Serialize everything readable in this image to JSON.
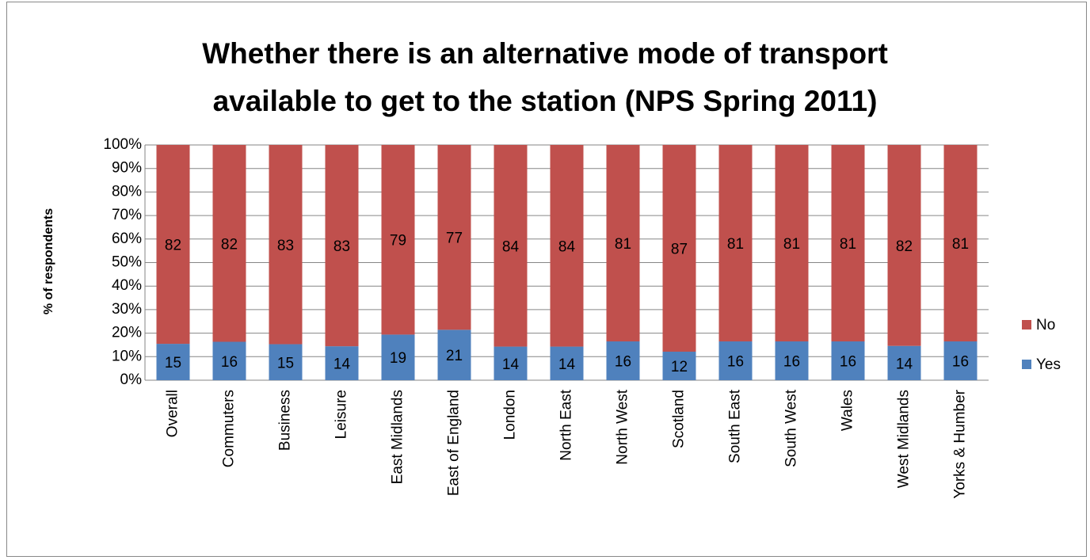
{
  "chart_data": {
    "type": "bar",
    "stack": "percent",
    "title": "Whether there is an alternative mode of transport available to get to the station (NPS Spring 2011)",
    "ylabel": "% of respondents",
    "categories": [
      "Overall",
      "Commuters",
      "Business",
      "Leisure",
      "East Midlands",
      "East of England",
      "London",
      "North East",
      "North West",
      "Scotland",
      "South East",
      "South West",
      "Wales",
      "West Midlands",
      "Yorks & Humber"
    ],
    "series": [
      {
        "name": "Yes",
        "color": "#4f81bd",
        "values": [
          15,
          16,
          15,
          14,
          19,
          21,
          14,
          14,
          16,
          12,
          16,
          16,
          16,
          14,
          16
        ]
      },
      {
        "name": "No",
        "color": "#c0504d",
        "values": [
          82,
          82,
          83,
          83,
          79,
          77,
          84,
          84,
          81,
          87,
          81,
          81,
          81,
          82,
          81
        ]
      }
    ],
    "ylim": [
      0,
      100
    ],
    "yticks": [
      {
        "value": 0,
        "label": "0%"
      },
      {
        "value": 10,
        "label": "10%"
      },
      {
        "value": 20,
        "label": "20%"
      },
      {
        "value": 30,
        "label": "30%"
      },
      {
        "value": 40,
        "label": "40%"
      },
      {
        "value": 50,
        "label": "50%"
      },
      {
        "value": 60,
        "label": "60%"
      },
      {
        "value": 70,
        "label": "70%"
      },
      {
        "value": 80,
        "label": "80%"
      },
      {
        "value": 90,
        "label": "90%"
      },
      {
        "value": 100,
        "label": "100%"
      }
    ],
    "grid": true,
    "legend": "right"
  }
}
